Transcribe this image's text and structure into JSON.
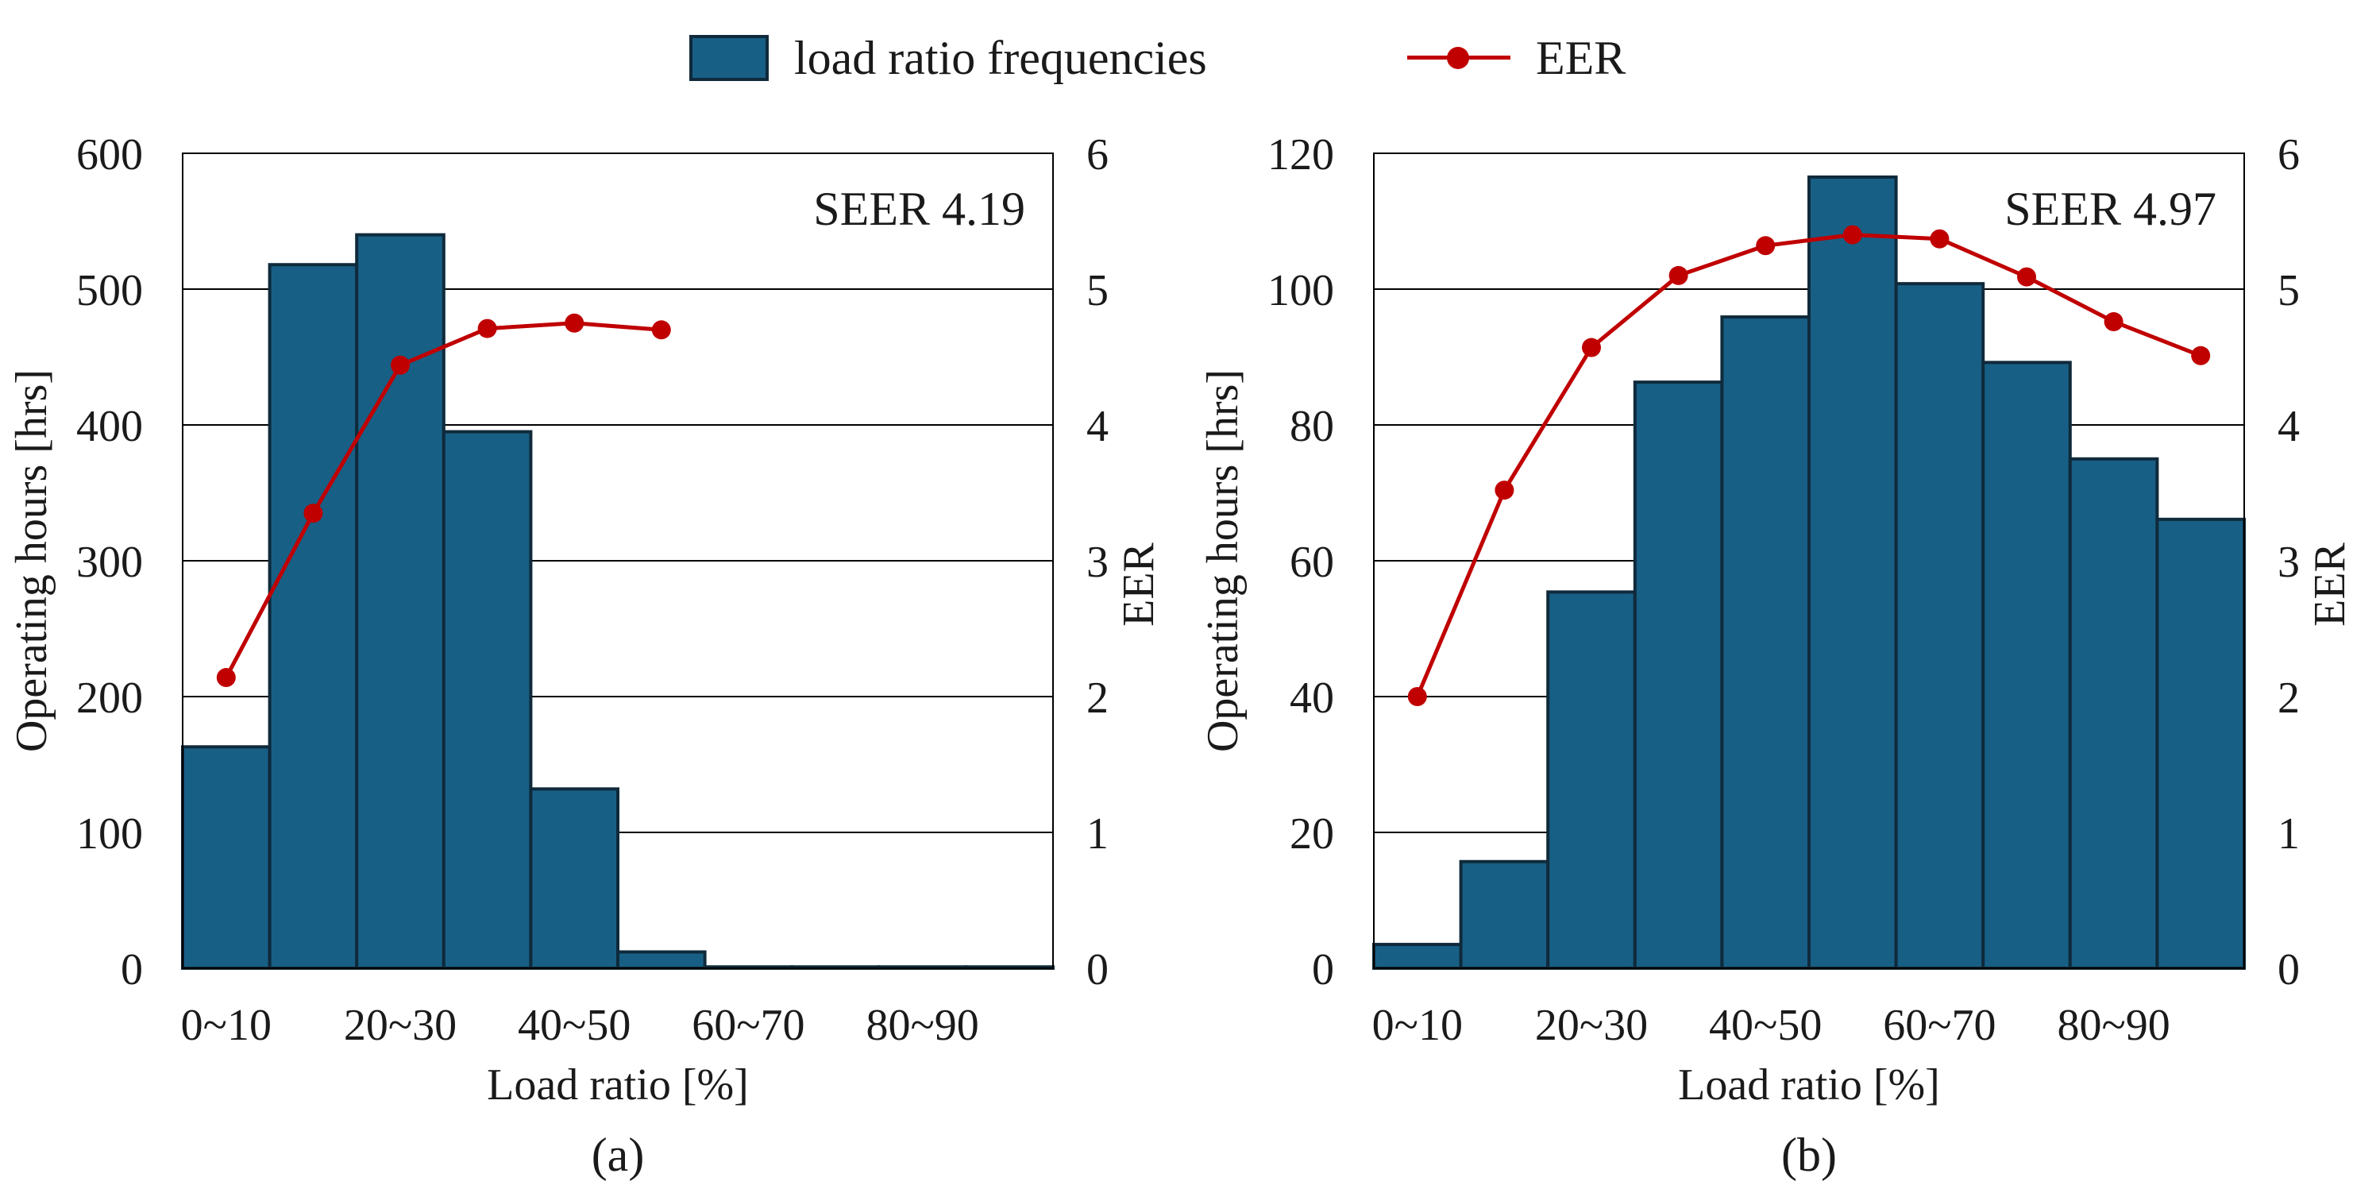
{
  "legend": {
    "bars_label": "load ratio frequencies",
    "line_label": "EER"
  },
  "colors": {
    "bar_fill": "#185F85",
    "bar_edge": "#0F2A3B",
    "line": "#C00000",
    "grid": "#000000"
  },
  "chart_data": [
    {
      "type": "bar",
      "panel_label": "(a)",
      "annotation": "SEER 4.19",
      "xlabel": "Load ratio [%]",
      "ylabel": "Operating hours [hrs]",
      "y2label": "EER",
      "categories": [
        "0~10",
        "10~20",
        "20~30",
        "30~40",
        "40~50",
        "50~60",
        "60~70",
        "70~80",
        "80~90",
        "90~100"
      ],
      "tick_labels": [
        "0~10",
        "20~30",
        "40~50",
        "60~70",
        "80~90"
      ],
      "ylim": [
        0,
        600
      ],
      "yticks": [
        0,
        100,
        200,
        300,
        400,
        500,
        600
      ],
      "y2lim": [
        0,
        6
      ],
      "y2ticks": [
        0,
        1,
        2,
        3,
        4,
        5,
        6
      ],
      "grid": true,
      "legend_position": "top",
      "series": [
        {
          "name": "load ratio frequencies",
          "type": "bar",
          "values": [
            163,
            518,
            540,
            395,
            132,
            12,
            1,
            1,
            1,
            1
          ]
        },
        {
          "name": "EER",
          "type": "line",
          "axis": "right",
          "values": [
            2.14,
            3.35,
            4.44,
            4.71,
            4.75,
            4.7,
            null,
            null,
            null,
            null
          ]
        }
      ]
    },
    {
      "type": "bar",
      "panel_label": "(b)",
      "annotation": "SEER 4.97",
      "xlabel": "Load ratio [%]",
      "ylabel": "Operating hours [hrs]",
      "y2label": "EER",
      "categories": [
        "0~10",
        "10~20",
        "20~30",
        "30~40",
        "40~50",
        "50~60",
        "60~70",
        "70~80",
        "80~90",
        "90~100"
      ],
      "tick_labels": [
        "0~10",
        "20~30",
        "40~50",
        "60~70",
        "80~90"
      ],
      "ylim": [
        0,
        120
      ],
      "yticks": [
        0,
        20,
        40,
        60,
        80,
        100,
        120
      ],
      "y2lim": [
        0,
        6
      ],
      "y2ticks": [
        0,
        1,
        2,
        3,
        4,
        5,
        6
      ],
      "grid": true,
      "legend_position": "top",
      "series": [
        {
          "name": "load ratio frequencies",
          "type": "bar",
          "values": [
            3.5,
            15.7,
            55.4,
            86.3,
            95.9,
            116.5,
            100.8,
            89.2,
            75.0,
            66.1
          ]
        },
        {
          "name": "EER",
          "type": "line",
          "axis": "right",
          "values": [
            2.0,
            3.52,
            4.57,
            5.1,
            5.32,
            5.4,
            5.37,
            5.09,
            4.76,
            4.51
          ]
        }
      ]
    }
  ]
}
